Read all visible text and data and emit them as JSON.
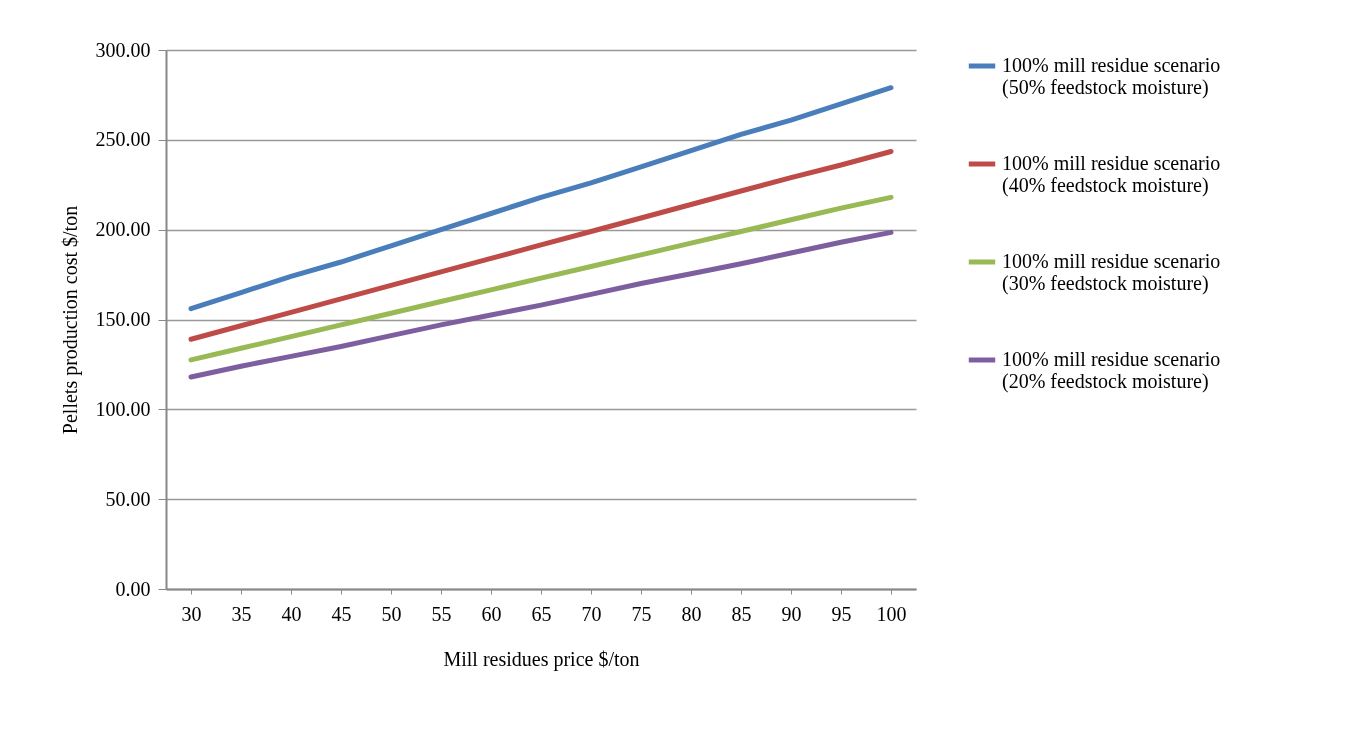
{
  "chart_data": {
    "type": "line",
    "xlabel": "Mill residues price $/ton",
    "ylabel": "Pellets production cost $/ton",
    "categories": [
      "30",
      "35",
      "40",
      "45",
      "50",
      "55",
      "60",
      "65",
      "70",
      "75",
      "80",
      "85",
      "90",
      "95",
      "100"
    ],
    "series": [
      {
        "name": "100% mill residue scenario\n(50% feedstock moisture)",
        "color": "#4a7ebb",
        "values": [
          156,
          165,
          174,
          182,
          191,
          200,
          209,
          218,
          226,
          235,
          244,
          253,
          261,
          270,
          279
        ]
      },
      {
        "name": "100% mill residue scenario\n(40% feedstock moisture)",
        "color": "#be4b48",
        "values": [
          139,
          146.5,
          154,
          161.5,
          169,
          176.5,
          184,
          191.5,
          199,
          206.5,
          214,
          221.5,
          229,
          236,
          243.5
        ]
      },
      {
        "name": "100% mill residue scenario\n(30% feedstock moisture)",
        "color": "#98b954",
        "values": [
          127.5,
          134,
          140.5,
          147,
          153.5,
          160,
          166.5,
          173,
          179.5,
          186,
          192.5,
          199,
          205.5,
          212,
          218
        ]
      },
      {
        "name": "100% mill residue scenario\n(20% feedstock moisture)",
        "color": "#7d5fa0",
        "values": [
          118,
          124,
          129.5,
          135,
          141,
          147,
          152.5,
          158,
          164,
          170,
          175.5,
          181,
          187,
          193,
          198.5
        ]
      }
    ],
    "ylim": [
      0,
      300
    ],
    "yticks": [
      {
        "value": 0,
        "label": "0.00"
      },
      {
        "value": 50,
        "label": "50.00"
      },
      {
        "value": 100,
        "label": "100.00"
      },
      {
        "value": 150,
        "label": "150.00"
      },
      {
        "value": 200,
        "label": "200.00"
      },
      {
        "value": 250,
        "label": "250.00"
      },
      {
        "value": 300,
        "label": "300.00"
      }
    ],
    "grid": "y",
    "legend": "right",
    "marker": "none",
    "line_style": "solid"
  }
}
